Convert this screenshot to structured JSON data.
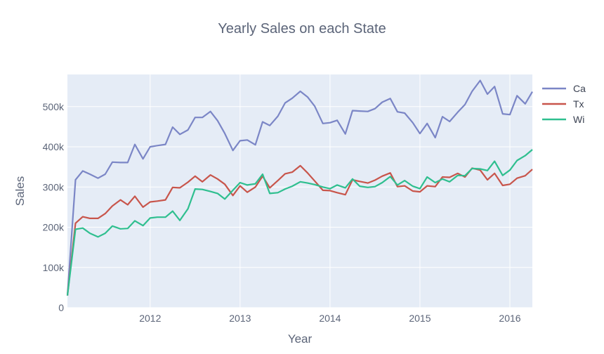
{
  "chart_data": {
    "type": "line",
    "title": "Yearly Sales on each State",
    "xlabel": "Year",
    "ylabel": "Sales",
    "xlim": [
      2011.08,
      2016.25
    ],
    "ylim": [
      0,
      580000
    ],
    "grid": true,
    "legend_position": "top-right",
    "x_ticks": [
      {
        "value": 2012,
        "label": "2012"
      },
      {
        "value": 2013,
        "label": "2013"
      },
      {
        "value": 2014,
        "label": "2014"
      },
      {
        "value": 2015,
        "label": "2015"
      },
      {
        "value": 2016,
        "label": "2016"
      }
    ],
    "y_ticks": [
      {
        "value": 0,
        "label": "0"
      },
      {
        "value": 100000,
        "label": "100k"
      },
      {
        "value": 200000,
        "label": "200k"
      },
      {
        "value": 300000,
        "label": "300k"
      },
      {
        "value": 400000,
        "label": "400k"
      },
      {
        "value": 500000,
        "label": "500k"
      }
    ],
    "x": [
      2011.08,
      2011.17,
      2011.25,
      2011.33,
      2011.42,
      2011.5,
      2011.58,
      2011.67,
      2011.75,
      2011.83,
      2011.92,
      2012.0,
      2012.08,
      2012.17,
      2012.25,
      2012.33,
      2012.42,
      2012.5,
      2012.58,
      2012.67,
      2012.75,
      2012.83,
      2012.92,
      2013.0,
      2013.08,
      2013.17,
      2013.25,
      2013.33,
      2013.42,
      2013.5,
      2013.58,
      2013.67,
      2013.75,
      2013.83,
      2013.92,
      2014.0,
      2014.08,
      2014.17,
      2014.25,
      2014.33,
      2014.42,
      2014.5,
      2014.58,
      2014.67,
      2014.75,
      2014.83,
      2014.92,
      2015.0,
      2015.08,
      2015.17,
      2015.25,
      2015.33,
      2015.42,
      2015.5,
      2015.58,
      2015.67,
      2015.75,
      2015.83,
      2015.92,
      2016.0,
      2016.08,
      2016.17,
      2016.25
    ],
    "series": [
      {
        "name": "Ca",
        "color": "#7b86c6",
        "values": [
          30000,
          318000,
          340000,
          332000,
          322000,
          332000,
          362000,
          361000,
          361000,
          406000,
          370000,
          400000,
          403000,
          406000,
          449000,
          431000,
          442000,
          473000,
          473000,
          488000,
          465000,
          433000,
          391000,
          415000,
          417000,
          405000,
          462000,
          453000,
          476000,
          509000,
          521000,
          538000,
          524000,
          501000,
          458000,
          460000,
          466000,
          432000,
          490000,
          489000,
          488000,
          495000,
          511000,
          520000,
          487000,
          484000,
          460000,
          433000,
          458000,
          423000,
          475000,
          463000,
          486000,
          505000,
          538000,
          565000,
          531000,
          550000,
          482000,
          480000,
          527000,
          507000,
          537000
        ]
      },
      {
        "name": "Tx",
        "color": "#c8554b",
        "values": [
          30000,
          210000,
          226000,
          222000,
          222000,
          234000,
          253000,
          268000,
          256000,
          277000,
          250000,
          263000,
          265000,
          268000,
          299000,
          298000,
          312000,
          327000,
          313000,
          330000,
          320000,
          307000,
          279000,
          303000,
          287000,
          300000,
          327000,
          298000,
          316000,
          333000,
          337000,
          353000,
          335000,
          315000,
          292000,
          291000,
          286000,
          281000,
          318000,
          314000,
          310000,
          317000,
          327000,
          335000,
          301000,
          303000,
          290000,
          288000,
          303000,
          301000,
          325000,
          324000,
          334000,
          325000,
          347000,
          342000,
          318000,
          334000,
          304000,
          307000,
          322000,
          328000,
          344000
        ]
      },
      {
        "name": "Wi",
        "color": "#2fbf8f",
        "values": [
          30000,
          195000,
          198000,
          185000,
          176000,
          185000,
          203000,
          196000,
          197000,
          216000,
          204000,
          223000,
          225000,
          225000,
          240000,
          217000,
          246000,
          295000,
          294000,
          289000,
          284000,
          270000,
          292000,
          311000,
          305000,
          308000,
          332000,
          284000,
          286000,
          295000,
          302000,
          313000,
          310000,
          306000,
          300000,
          296000,
          305000,
          298000,
          320000,
          302000,
          299000,
          301000,
          311000,
          326000,
          305000,
          316000,
          302000,
          296000,
          325000,
          311000,
          320000,
          313000,
          329000,
          328000,
          346000,
          345000,
          341000,
          364000,
          329000,
          342000,
          366000,
          378000,
          393000
        ]
      }
    ]
  }
}
